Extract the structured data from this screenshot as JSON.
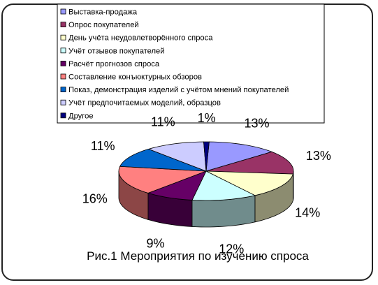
{
  "chart_data": {
    "type": "pie",
    "title": "",
    "categories": [
      "Выставка-продажа",
      "Опрос покупателей",
      "День учёта неудовлетворённого спроса",
      "Учёт отзывов покупателей",
      "Расчёт прогнозов спроса",
      "Составление конъюктурных обзоров",
      "Показ, демонстрация изделий с учётом мнений покупателей",
      "Учёт предпочитаемых моделий, образцов",
      "Другое"
    ],
    "values": [
      13,
      13,
      14,
      12,
      9,
      16,
      11,
      11,
      1
    ],
    "labels": [
      "13%",
      "13%",
      "14%",
      "12%",
      "9%",
      "16%",
      "11%",
      "11%",
      "1%"
    ],
    "colors": [
      "#9999FF",
      "#993366",
      "#FFFFCC",
      "#CCFFFF",
      "#660066",
      "#FF8080",
      "#0066CC",
      "#CCCCFF",
      "#000080"
    ],
    "legend_position": "top",
    "three_d": true
  },
  "caption": "Рис.1 Мероприятия по изучению спроса"
}
